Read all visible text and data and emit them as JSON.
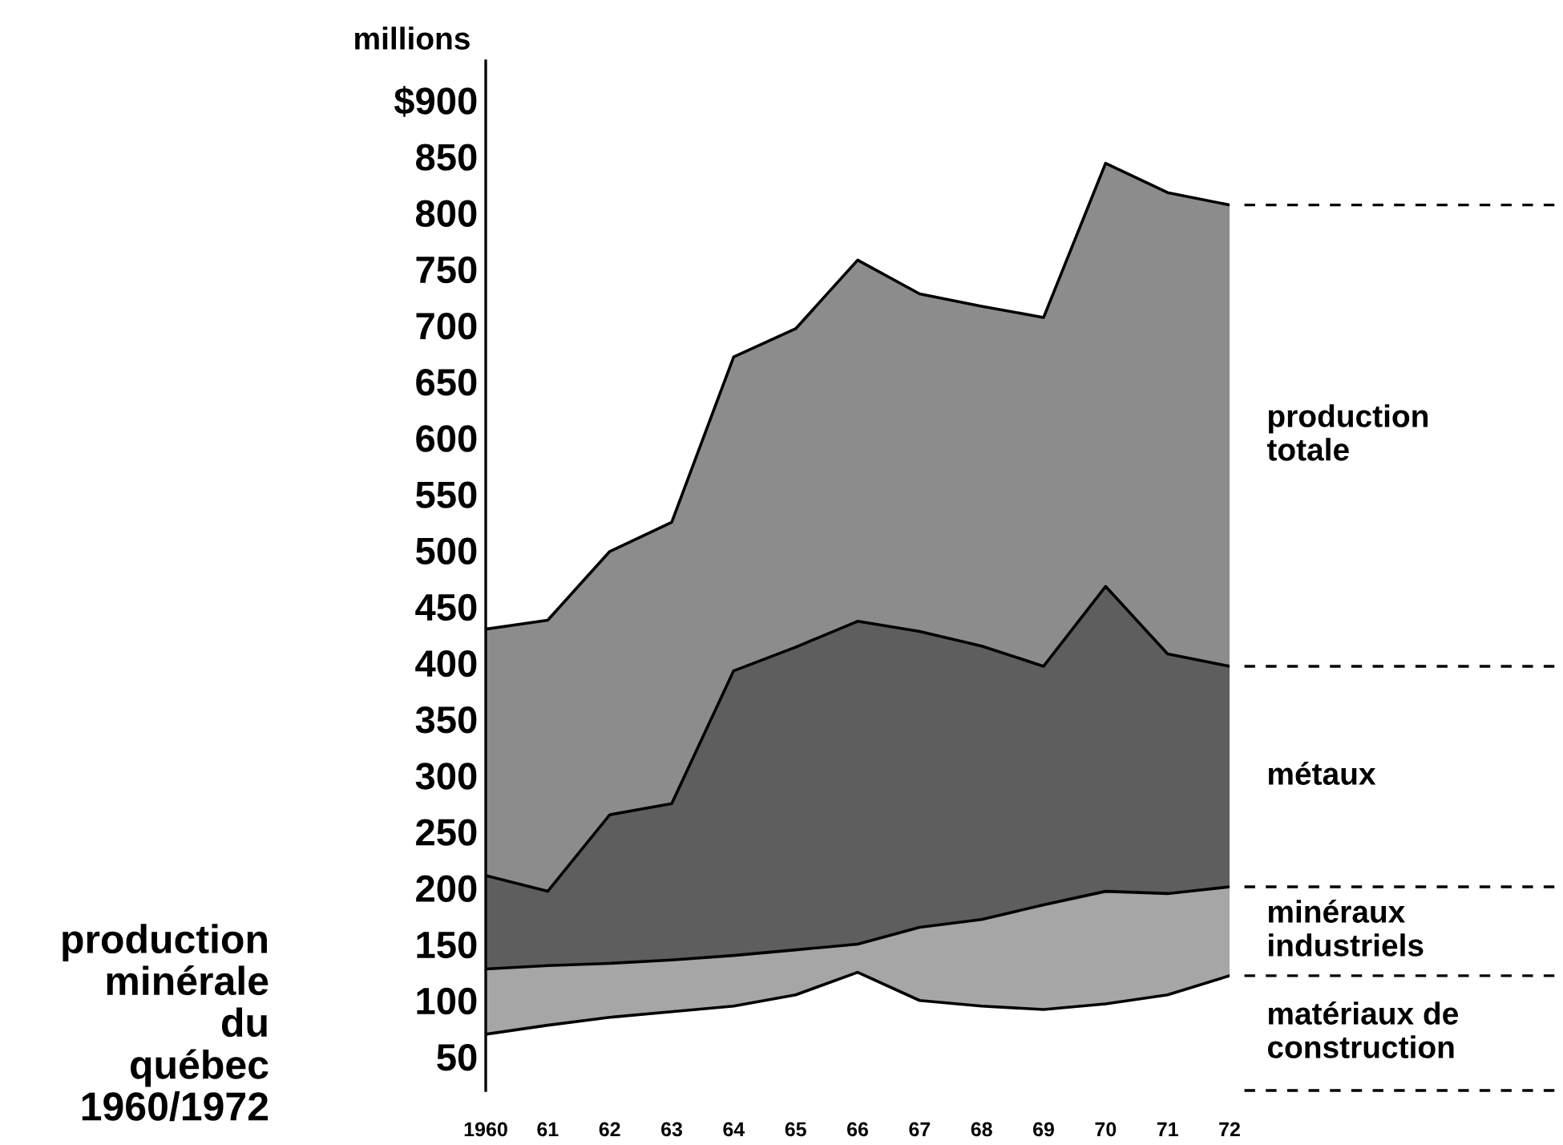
{
  "chart_data": {
    "type": "area",
    "title": "production\nminérale\ndu\nquébec\n1960/1972",
    "ylabel": "millions",
    "x": [
      1960,
      1961,
      1962,
      1963,
      1964,
      1965,
      1966,
      1967,
      1968,
      1969,
      1970,
      1971,
      1972
    ],
    "xlim": [
      1960,
      1972
    ],
    "xticks": [
      {
        "value": 1960,
        "label": "1960"
      },
      {
        "value": 1961,
        "label": "61"
      },
      {
        "value": 1962,
        "label": "62"
      },
      {
        "value": 1963,
        "label": "63"
      },
      {
        "value": 1964,
        "label": "64"
      },
      {
        "value": 1965,
        "label": "65"
      },
      {
        "value": 1966,
        "label": "66"
      },
      {
        "value": 1967,
        "label": "67"
      },
      {
        "value": 1968,
        "label": "68"
      },
      {
        "value": 1969,
        "label": "69"
      },
      {
        "value": 1970,
        "label": "70"
      },
      {
        "value": 1971,
        "label": "71"
      },
      {
        "value": 1972,
        "label": "72"
      }
    ],
    "ylim": [
      20,
      935
    ],
    "yticks": [
      50,
      100,
      150,
      200,
      250,
      300,
      350,
      400,
      450,
      500,
      550,
      600,
      650,
      700,
      750,
      800,
      850,
      {
        "value": 900,
        "label": "$900"
      }
    ],
    "grid": false,
    "legend": false,
    "series": [
      {
        "name": "production\ntotale",
        "color": "#8c8c8c",
        "values": [
          430,
          438,
          499,
          525,
          672,
          697,
          758,
          728,
          717,
          707,
          844,
          818,
          807
        ]
      },
      {
        "name": "métaux",
        "color": "#5e5e5e",
        "values": [
          211,
          197,
          265,
          275,
          393,
          414,
          437,
          428,
          415,
          397,
          468,
          408,
          397
        ]
      },
      {
        "name": "minéraux\nindustriels",
        "color": "#a6a6a6",
        "values": [
          128,
          131,
          133,
          136,
          140,
          145,
          150,
          165,
          172,
          185,
          197,
          195,
          201
        ]
      },
      {
        "name": "matériaux de\nconstruction",
        "color": "#ffffff",
        "values": [
          70,
          78,
          85,
          90,
          95,
          105,
          125,
          100,
          95,
          92,
          97,
          105,
          122
        ]
      }
    ]
  }
}
